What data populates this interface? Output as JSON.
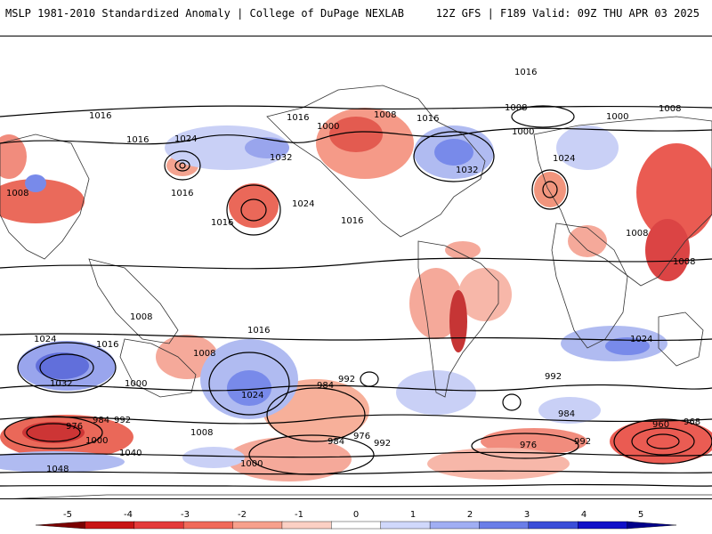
{
  "header": {
    "title_left": "MSLP 1981-2010 Standardized Anomaly | College of DuPage NEXLAB",
    "title_right": "12Z GFS | F189 Valid: 09Z THU APR 03 2025"
  },
  "map": {
    "isobar_labels": [
      "1016",
      "1016",
      "1016",
      "1016",
      "1016",
      "1016",
      "1016",
      "1016",
      "1016",
      "1016",
      "1024",
      "1024",
      "1024",
      "1024",
      "1024",
      "1024",
      "1032",
      "1032",
      "1032",
      "1008",
      "1008",
      "1008",
      "1008",
      "1008",
      "1008",
      "1008",
      "1008",
      "1008",
      "1000",
      "1000",
      "1000",
      "1000",
      "1000",
      "1000",
      "992",
      "992",
      "992",
      "992",
      "992",
      "984",
      "984",
      "984",
      "984",
      "976",
      "976",
      "976",
      "968",
      "960",
      "1040",
      "1048"
    ]
  },
  "colorbar": {
    "ticks": [
      "-5",
      "-4",
      "-3",
      "-2",
      "-1",
      "0",
      "1",
      "2",
      "3",
      "4",
      "5"
    ],
    "colors": [
      "#7a0000",
      "#c81414",
      "#e43a3a",
      "#f06a5a",
      "#f7a08c",
      "#fbd0c4",
      "#ffffff",
      "#d0d8fb",
      "#a0aef3",
      "#6a7ee8",
      "#3a4ed8",
      "#1010c8",
      "#00008a"
    ]
  }
}
